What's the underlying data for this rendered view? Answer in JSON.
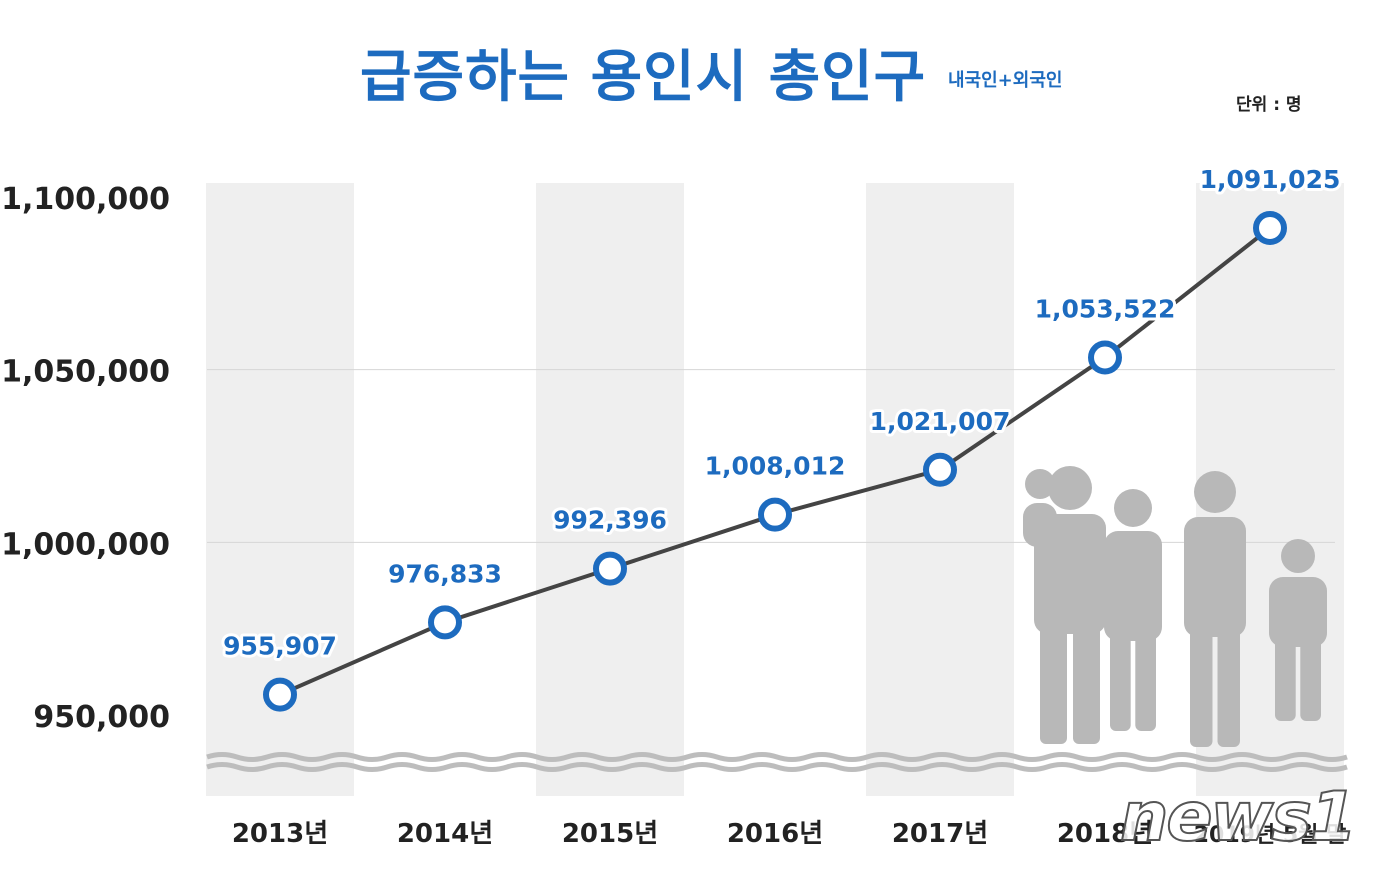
{
  "header": {
    "title": "급증하는 용인시 총인구",
    "subtitle": "내국인+외국인",
    "unit": "단위 : 명"
  },
  "watermark": "news1",
  "colors": {
    "accent": "#1d6bbf",
    "line": "#444444",
    "band": "#efefef",
    "silhouette": "#b8b8b8"
  },
  "chart_data": {
    "type": "line",
    "categories": [
      "2013년",
      "2014년",
      "2015년",
      "2016년",
      "2017년",
      "2018년",
      "2019년 5월 말"
    ],
    "values": [
      955907,
      976833,
      992396,
      1008012,
      1021007,
      1053522,
      1091025
    ],
    "data_labels": [
      "955,907",
      "976,833",
      "992,396",
      "1,008,012",
      "1,021,007",
      "1,053,522",
      "1,091,025"
    ],
    "yticks": [
      950000,
      1000000,
      1050000,
      1100000
    ],
    "ytick_labels": [
      "950,000",
      "1,000,000",
      "1,050,000",
      "1,100,000"
    ],
    "ylim": [
      950000,
      1100000
    ],
    "axis_break": true,
    "grid": true,
    "legend": "none"
  }
}
